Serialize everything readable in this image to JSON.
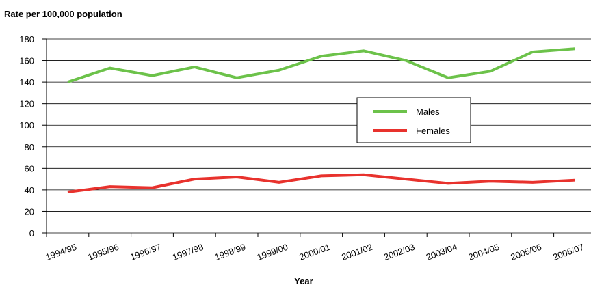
{
  "chart_data": {
    "type": "line",
    "title": "Rate per 100,000 population",
    "x_label": "Year",
    "categories": [
      "1994/95",
      "1995/96",
      "1996/97",
      "1997/98",
      "1998/99",
      "1999/00",
      "2000/01",
      "2001/02",
      "2002/03",
      "2003/04",
      "2004/05",
      "2005/06",
      "2006/07"
    ],
    "series": [
      {
        "name": "Males",
        "color": "#6cc24a",
        "values": [
          140,
          153,
          146,
          154,
          144,
          151,
          164,
          169,
          160,
          144,
          150,
          168,
          171
        ]
      },
      {
        "name": "Females",
        "color": "#e8322d",
        "values": [
          38,
          43,
          42,
          50,
          52,
          47,
          53,
          54,
          50,
          46,
          48,
          47,
          49
        ]
      }
    ],
    "ylim": [
      0,
      180
    ],
    "yticks": [
      0,
      20,
      40,
      60,
      80,
      100,
      120,
      140,
      160,
      180
    ],
    "grid": true
  }
}
